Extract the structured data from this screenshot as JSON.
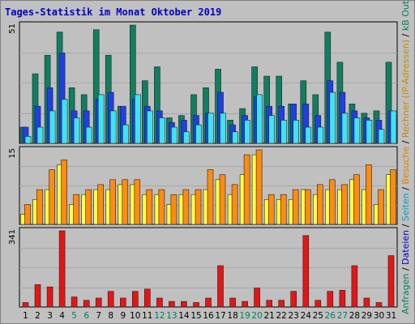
{
  "title": "Tages-Statistik im Monat Oktober 2019",
  "colors": {
    "background": "#c0c0c0",
    "title": "#0000cc",
    "weekday": "#000000",
    "weekend": "#008060",
    "anfragen": "#0f7f5f",
    "dateien": "#1e3fe6",
    "seiten": "#3ee3f6",
    "rechner": "#ffff44",
    "besuche": "#ff8c10",
    "kb": "#e61515"
  },
  "side_legend": [
    {
      "text": "Anfragen",
      "color": "#008060"
    },
    {
      "text": " / ",
      "color": "#000000"
    },
    {
      "text": "Dateien",
      "color": "#0000cc"
    },
    {
      "text": " / ",
      "color": "#000000"
    },
    {
      "text": "Seiten",
      "color": "#00a0c0"
    },
    {
      "text": " / ",
      "color": "#000000"
    },
    {
      "text": "Besuche",
      "color": "#e08000"
    },
    {
      "text": " / ",
      "color": "#000000"
    },
    {
      "text": "Rechner (IP-Adressen)",
      "color": "#c09000"
    },
    {
      "text": " / ",
      "color": "#000000"
    },
    {
      "text": "kB Out",
      "color": "#008060"
    },
    {
      "text": " / ",
      "color": "#000000"
    },
    {
      "text": "kB In",
      "color": "#0000cc"
    },
    {
      "text": " / ",
      "color": "#000000"
    },
    {
      "text": "kB F",
      "color": "#cc0000"
    }
  ],
  "chart_data": [
    {
      "type": "bar",
      "ymax_label": "51",
      "ylim": [
        0,
        51
      ],
      "categories": [
        "1",
        "2",
        "3",
        "4",
        "5",
        "6",
        "7",
        "8",
        "9",
        "10",
        "11",
        "12",
        "13",
        "14",
        "15",
        "16",
        "17",
        "18",
        "19",
        "20",
        "21",
        "22",
        "23",
        "24",
        "25",
        "26",
        "27",
        "28",
        "29",
        "30",
        "31"
      ],
      "weekend_days": [
        "5",
        "6",
        "12",
        "13",
        "19",
        "20",
        "26",
        "27"
      ],
      "series": [
        {
          "key": "anfragen",
          "values": [
            7,
            30,
            38,
            48,
            24,
            21,
            49,
            38,
            16,
            51,
            27,
            33,
            11,
            12,
            21,
            24,
            32,
            10,
            15,
            33,
            29,
            29,
            17,
            27,
            21,
            48,
            35,
            17,
            13,
            14,
            35
          ]
        },
        {
          "key": "dateien",
          "values": [
            7,
            16,
            24,
            39,
            14,
            14,
            19,
            22,
            16,
            19,
            16,
            14,
            9,
            10,
            12,
            13,
            22,
            8,
            12,
            20,
            16,
            16,
            17,
            17,
            12,
            27,
            22,
            14,
            11,
            10,
            14
          ]
        },
        {
          "key": "seiten",
          "values": [
            3,
            7,
            14,
            19,
            11,
            7,
            21,
            14,
            8,
            21,
            14,
            11,
            7,
            5,
            8,
            13,
            13,
            5,
            10,
            21,
            12,
            10,
            10,
            7,
            7,
            22,
            13,
            11,
            10,
            6,
            14
          ]
        }
      ]
    },
    {
      "type": "bar",
      "ymax_label": "15",
      "ylim": [
        0,
        15
      ],
      "series": [
        {
          "key": "rechner",
          "values": [
            2,
            5,
            7,
            12,
            4,
            6,
            7,
            7,
            8,
            8,
            6,
            6,
            4,
            6,
            6,
            7,
            9,
            6,
            10,
            14,
            5,
            5,
            5,
            7,
            6,
            7,
            7,
            9,
            7,
            4,
            10
          ]
        },
        {
          "key": "besuche",
          "values": [
            4,
            7,
            11,
            13,
            6,
            7,
            8,
            9,
            9,
            9,
            7,
            7,
            6,
            7,
            7,
            11,
            10,
            8,
            14,
            15,
            6,
            6,
            7,
            7,
            8,
            9,
            8,
            10,
            12,
            7,
            11
          ]
        }
      ]
    },
    {
      "type": "bar",
      "ymax_label": "341",
      "ylim": [
        0,
        341
      ],
      "series": [
        {
          "key": "kb",
          "values": [
            20,
            100,
            90,
            341,
            45,
            30,
            40,
            70,
            40,
            70,
            80,
            40,
            25,
            25,
            20,
            40,
            185,
            40,
            25,
            85,
            30,
            30,
            70,
            320,
            30,
            70,
            75,
            185,
            40,
            20,
            230
          ]
        }
      ]
    }
  ]
}
